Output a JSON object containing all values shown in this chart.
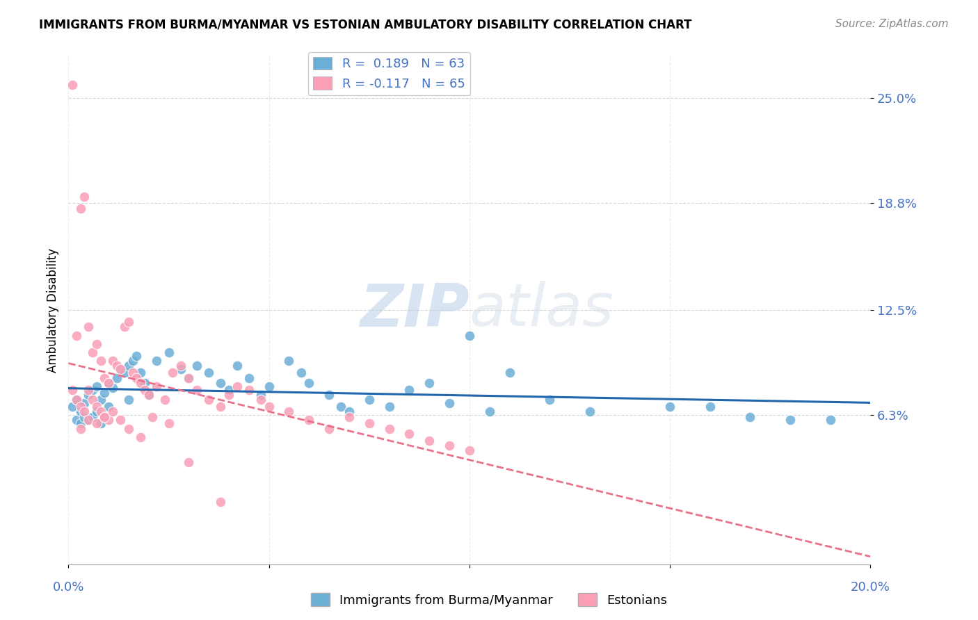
{
  "title": "IMMIGRANTS FROM BURMA/MYANMAR VS ESTONIAN AMBULATORY DISABILITY CORRELATION CHART",
  "source": "Source: ZipAtlas.com",
  "ylabel": "Ambulatory Disability",
  "ytick_values": [
    0.063,
    0.125,
    0.188,
    0.25
  ],
  "ytick_labels": [
    "6.3%",
    "12.5%",
    "18.8%",
    "25.0%"
  ],
  "xlim": [
    0.0,
    0.2
  ],
  "ylim": [
    -0.025,
    0.275
  ],
  "legend_blue_R": "R =  0.189",
  "legend_blue_N": "N = 63",
  "legend_pink_R": "R = -0.117",
  "legend_pink_N": "N = 65",
  "blue_color": "#6baed6",
  "pink_color": "#fa9fb5",
  "blue_line_color": "#2166ac",
  "pink_line_color": "#e8728a",
  "watermark_zip": "ZIP",
  "watermark_atlas": "atlas",
  "blue_scatter_x": [
    0.001,
    0.002,
    0.002,
    0.003,
    0.003,
    0.004,
    0.004,
    0.005,
    0.005,
    0.006,
    0.006,
    0.007,
    0.007,
    0.008,
    0.008,
    0.009,
    0.009,
    0.01,
    0.01,
    0.011,
    0.012,
    0.013,
    0.014,
    0.015,
    0.015,
    0.016,
    0.017,
    0.018,
    0.019,
    0.02,
    0.022,
    0.025,
    0.028,
    0.03,
    0.032,
    0.035,
    0.038,
    0.04,
    0.042,
    0.045,
    0.048,
    0.05,
    0.055,
    0.058,
    0.06,
    0.065,
    0.068,
    0.07,
    0.075,
    0.08,
    0.085,
    0.09,
    0.095,
    0.1,
    0.105,
    0.11,
    0.12,
    0.13,
    0.15,
    0.16,
    0.17,
    0.18,
    0.19
  ],
  "blue_scatter_y": [
    0.068,
    0.072,
    0.06,
    0.065,
    0.058,
    0.07,
    0.062,
    0.075,
    0.06,
    0.078,
    0.062,
    0.08,
    0.065,
    0.072,
    0.058,
    0.076,
    0.062,
    0.082,
    0.068,
    0.079,
    0.085,
    0.09,
    0.088,
    0.092,
    0.072,
    0.095,
    0.098,
    0.088,
    0.082,
    0.075,
    0.095,
    0.1,
    0.09,
    0.085,
    0.092,
    0.088,
    0.082,
    0.078,
    0.092,
    0.085,
    0.075,
    0.08,
    0.095,
    0.088,
    0.082,
    0.075,
    0.068,
    0.065,
    0.072,
    0.068,
    0.078,
    0.082,
    0.07,
    0.11,
    0.065,
    0.088,
    0.072,
    0.065,
    0.068,
    0.068,
    0.062,
    0.06,
    0.06
  ],
  "pink_scatter_x": [
    0.001,
    0.001,
    0.002,
    0.002,
    0.003,
    0.003,
    0.004,
    0.004,
    0.005,
    0.005,
    0.006,
    0.006,
    0.007,
    0.007,
    0.008,
    0.008,
    0.009,
    0.009,
    0.01,
    0.01,
    0.011,
    0.012,
    0.013,
    0.014,
    0.015,
    0.016,
    0.017,
    0.018,
    0.019,
    0.02,
    0.022,
    0.024,
    0.026,
    0.028,
    0.03,
    0.032,
    0.035,
    0.038,
    0.04,
    0.042,
    0.045,
    0.048,
    0.05,
    0.055,
    0.06,
    0.065,
    0.07,
    0.075,
    0.08,
    0.085,
    0.09,
    0.095,
    0.1,
    0.003,
    0.005,
    0.007,
    0.009,
    0.011,
    0.013,
    0.015,
    0.018,
    0.021,
    0.025,
    0.03,
    0.038
  ],
  "pink_scatter_y": [
    0.258,
    0.078,
    0.11,
    0.072,
    0.185,
    0.068,
    0.192,
    0.065,
    0.115,
    0.078,
    0.1,
    0.072,
    0.105,
    0.068,
    0.095,
    0.065,
    0.085,
    0.062,
    0.082,
    0.06,
    0.095,
    0.092,
    0.09,
    0.115,
    0.118,
    0.088,
    0.085,
    0.082,
    0.078,
    0.075,
    0.08,
    0.072,
    0.088,
    0.092,
    0.085,
    0.078,
    0.072,
    0.068,
    0.075,
    0.08,
    0.078,
    0.072,
    0.068,
    0.065,
    0.06,
    0.055,
    0.062,
    0.058,
    0.055,
    0.052,
    0.048,
    0.045,
    0.042,
    0.055,
    0.06,
    0.058,
    0.062,
    0.065,
    0.06,
    0.055,
    0.05,
    0.062,
    0.058,
    0.035,
    0.012
  ]
}
